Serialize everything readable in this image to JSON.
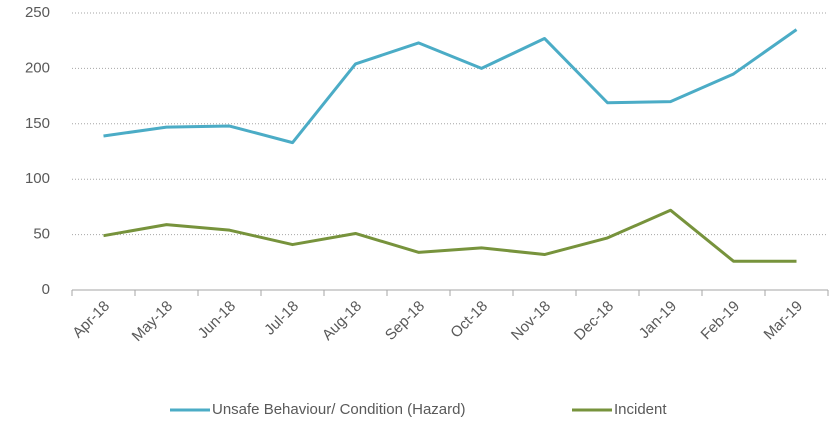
{
  "chart_data": {
    "type": "line",
    "categories": [
      "Apr-18",
      "May-18",
      "Jun-18",
      "Jul-18",
      "Aug-18",
      "Sep-18",
      "Oct-18",
      "Nov-18",
      "Dec-18",
      "Jan-19",
      "Feb-19",
      "Mar-19"
    ],
    "series": [
      {
        "name": "Unsafe Behaviour/ Condition (Hazard)",
        "color": "#4bacc6",
        "values": [
          139,
          147,
          148,
          133,
          204,
          223,
          200,
          227,
          169,
          170,
          195,
          235
        ]
      },
      {
        "name": "Incident",
        "color": "#77933c",
        "values": [
          49,
          59,
          54,
          41,
          51,
          34,
          38,
          32,
          47,
          72,
          26,
          26
        ]
      }
    ],
    "ylim": [
      0,
      250
    ],
    "yticks": [
      0,
      50,
      100,
      150,
      200,
      250
    ],
    "grid": true,
    "legend": "bottom"
  }
}
